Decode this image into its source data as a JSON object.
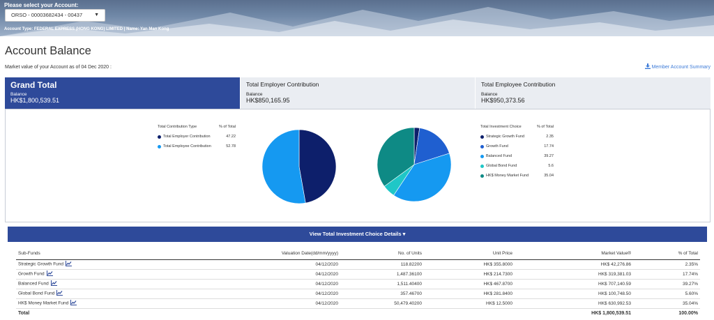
{
  "header": {
    "select_label": "Please select your Account:",
    "account_value": "ORSO - 00003682434 - 00437",
    "caret_icon": "caret-down-icon",
    "account_info": "Account Type: FEDERAL EXPRESS (HONG KONG) LIMITED | Name: Yan Man Kong"
  },
  "page": {
    "title": "Account Balance",
    "market_value_text": "Market value of your Account as of 04 Dec 2020 :",
    "summary_link": "Member Account Summary",
    "download_icon": "download-icon"
  },
  "tabs": [
    {
      "title": "Grand Total",
      "balance_label": "Balance",
      "balance": "HK$1,800,539.51",
      "active": true
    },
    {
      "title": "Total Employer Contribution",
      "balance_label": "Balance",
      "balance": "HK$850,165.95",
      "active": false
    },
    {
      "title": "Total Employee Contribution",
      "balance_label": "Balance",
      "balance": "HK$950,373.56",
      "active": false
    }
  ],
  "contribution_legend": {
    "header_name": "Total Contribution Type",
    "header_pct": "% of Total",
    "items": [
      {
        "name": "Total Employer Contribution",
        "pct": "47.22",
        "color": "#0d1f6b"
      },
      {
        "name": "Total Employee Contribution",
        "pct": "52.78",
        "color": "#1599f1"
      }
    ]
  },
  "investment_legend": {
    "header_name": "Total Investment Choice",
    "header_pct": "% of Total",
    "items": [
      {
        "name": "Strategic Growth Fund",
        "pct": "2.35",
        "color": "#0d1f6b"
      },
      {
        "name": "Growth Fund",
        "pct": "17.74",
        "color": "#1f5fd0"
      },
      {
        "name": "Balanced Fund",
        "pct": "39.27",
        "color": "#1599f1"
      },
      {
        "name": "Global Bond Fund",
        "pct": "5.6",
        "color": "#1fc7c7"
      },
      {
        "name": "HK$ Money Market Fund",
        "pct": "35.04",
        "color": "#0e8a85"
      }
    ]
  },
  "chart_data": [
    {
      "type": "pie",
      "title": "",
      "categories": [
        "Total Employer Contribution",
        "Total Employee Contribution"
      ],
      "values": [
        47.22,
        52.78
      ],
      "colors": [
        "#0d1f6b",
        "#1599f1"
      ]
    },
    {
      "type": "pie",
      "title": "",
      "categories": [
        "Strategic Growth Fund",
        "Growth Fund",
        "Balanced Fund",
        "Global Bond Fund",
        "HK$ Money Market Fund"
      ],
      "values": [
        2.35,
        17.74,
        39.27,
        5.6,
        35.04
      ],
      "colors": [
        "#0d1f6b",
        "#1f5fd0",
        "#1599f1",
        "#1fc7c7",
        "#0e8a85"
      ]
    }
  ],
  "details": {
    "label": "View Total Investment Choice Details",
    "caret_icon": "caret-down-icon"
  },
  "table": {
    "headers": [
      "Sub-Funds",
      "Valuation Date(dd/mm/yyyy)",
      "No. of Units",
      "Unit Price",
      "Market Value®",
      "% of Total"
    ],
    "rows": [
      {
        "fund": "Strategic Growth Fund",
        "date": "04/12/2020",
        "units": "118.82200",
        "price": "HK$ 355.8000",
        "value": "HK$ 42,276.86",
        "pct": "2.35%"
      },
      {
        "fund": "Growth Fund",
        "date": "04/12/2020",
        "units": "1,487.36100",
        "price": "HK$ 214.7300",
        "value": "HK$ 319,381.03",
        "pct": "17.74%"
      },
      {
        "fund": "Balanced Fund",
        "date": "04/12/2020",
        "units": "1,511.40400",
        "price": "HK$ 467.8700",
        "value": "HK$ 707,140.59",
        "pct": "39.27%"
      },
      {
        "fund": "Global Bond Fund",
        "date": "04/12/2020",
        "units": "357.46700",
        "price": "HK$ 281.8400",
        "value": "HK$ 100,748.50",
        "pct": "5.60%"
      },
      {
        "fund": "HK$ Money Market Fund",
        "date": "04/12/2020",
        "units": "50,479.40200",
        "price": "HK$ 12.5000",
        "value": "HK$ 630,992.53",
        "pct": "35.04%"
      }
    ],
    "total": {
      "label": "Total",
      "value": "HK$ 1,800,539.51",
      "pct": "100.00%"
    },
    "row_icon": "line-chart-icon"
  }
}
